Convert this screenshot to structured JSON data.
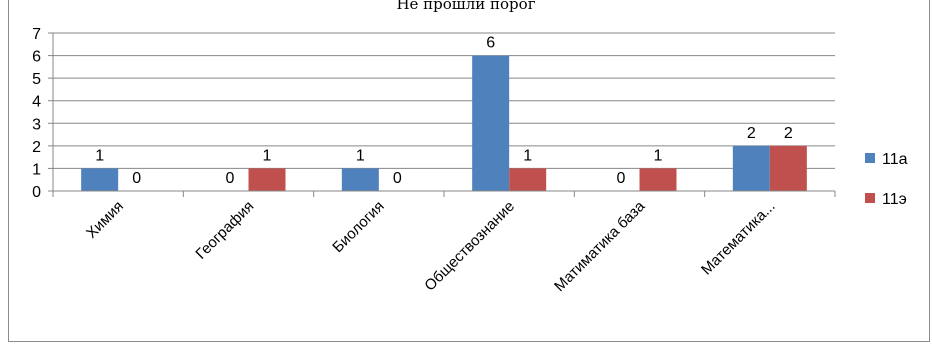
{
  "chart_data": {
    "type": "bar",
    "title": "Не прошли порог",
    "categories": [
      "Химия",
      "География",
      "Биология",
      "Обществознание",
      "Матиматика база",
      "Математика..."
    ],
    "series": [
      {
        "name": "11а",
        "values": [
          1,
          0,
          1,
          6,
          0,
          2
        ],
        "color": "#4f81bd"
      },
      {
        "name": "11э",
        "values": [
          0,
          1,
          0,
          1,
          1,
          2
        ],
        "color": "#c0504d"
      }
    ],
    "ylim": [
      0,
      7
    ],
    "yticks": [
      0,
      1,
      2,
      3,
      4,
      5,
      6,
      7
    ],
    "grid": true,
    "legend": "right"
  }
}
